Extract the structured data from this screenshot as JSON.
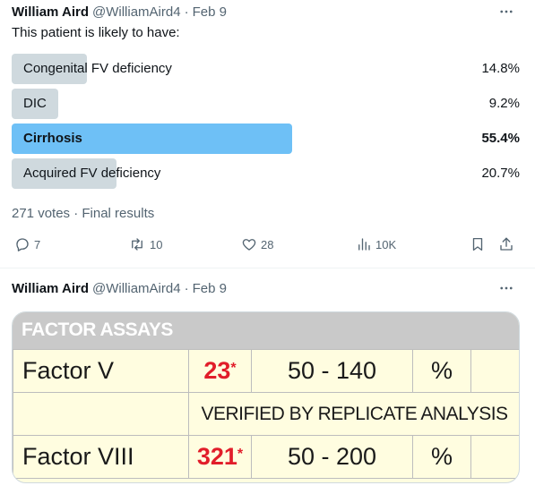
{
  "tweet1": {
    "author_name": "William Aird",
    "author_handle": "@WilliamAird4",
    "separator": "·",
    "date": "Feb 9",
    "text": "This patient is likely to have:",
    "poll": {
      "options": [
        {
          "label": "Congenital FV deficiency",
          "percent": 14.8,
          "percent_text": "14.8%",
          "winner": false
        },
        {
          "label": "DIC",
          "percent": 9.2,
          "percent_text": "9.2%",
          "winner": false
        },
        {
          "label": "Cirrhosis",
          "percent": 55.4,
          "percent_text": "55.4%",
          "winner": true
        },
        {
          "label": "Acquired FV deficiency",
          "percent": 20.7,
          "percent_text": "20.7%",
          "winner": false
        }
      ],
      "footer": "271 votes · Final results"
    },
    "actions": {
      "replies": "7",
      "reposts": "10",
      "likes": "28",
      "views": "10K"
    }
  },
  "tweet2": {
    "author_name": "William Aird",
    "author_handle": "@WilliamAird4",
    "separator": "·",
    "date": "Feb 9",
    "image": {
      "title": "FACTOR ASSAYS",
      "rows": [
        {
          "name": "Factor V",
          "value": "23",
          "flag": "*",
          "range": "50 - 140",
          "unit": "%"
        },
        {
          "note": "VERIFIED BY REPLICATE ANALYSIS"
        },
        {
          "name": "Factor VIII",
          "value": "321",
          "flag": "*",
          "range": "50 - 200",
          "unit": "%"
        }
      ]
    }
  },
  "colors": {
    "text_primary": "#0f1419",
    "text_secondary": "#536471",
    "poll_bar": "#cfd9de",
    "poll_bar_winner": "#6ec0f6",
    "assay_flag": "#e11d2a",
    "assay_background": "#fffde0",
    "assay_header": "#c9c9c9"
  },
  "icons": {
    "more": "more-horizontal-icon",
    "reply": "reply-icon",
    "repost": "repost-icon",
    "like": "heart-icon",
    "views": "views-icon",
    "bookmark": "bookmark-icon",
    "share": "share-icon"
  }
}
